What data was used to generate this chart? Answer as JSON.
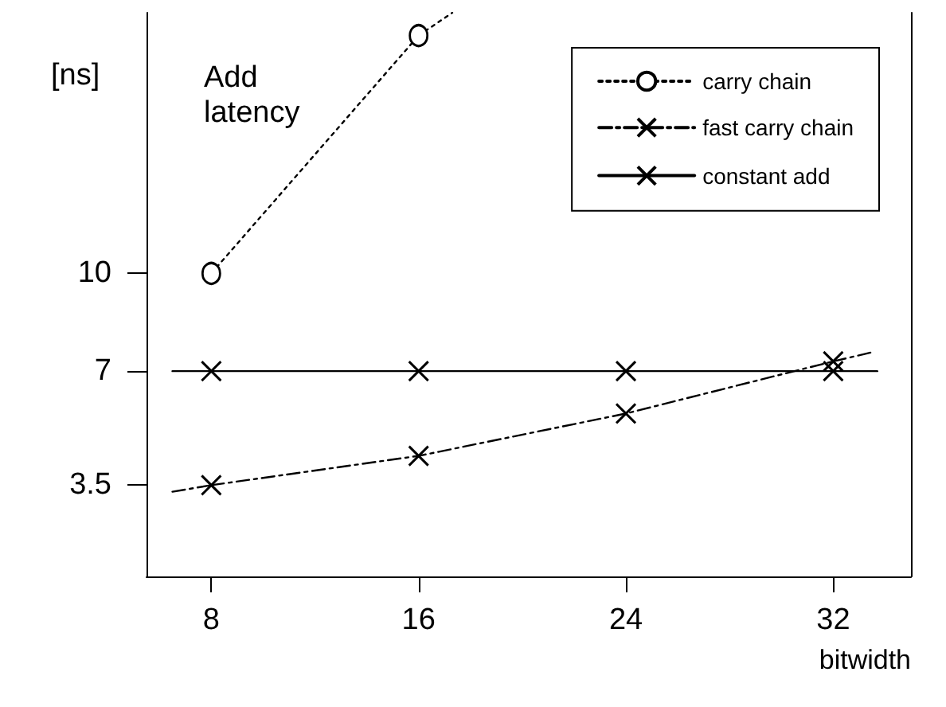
{
  "chart_data": {
    "type": "line",
    "xlabel": "bitwidth",
    "ylabel": "Add latency",
    "annotations": [
      "[ns]"
    ],
    "xlim": [
      5.5,
      35
    ],
    "xticks": [
      8,
      16,
      24,
      32
    ],
    "ylim": [
      0.7,
      18
    ],
    "yticks": [
      3.5,
      7,
      10
    ],
    "grid": false,
    "legend": "top right",
    "series": [
      {
        "name": "carry chain",
        "color": "#000000",
        "x": [
          8,
          16
        ],
        "values": [
          10,
          17.3
        ],
        "marker": "circle",
        "line_style": "dotted"
      },
      {
        "name": "fast carry chain",
        "color": "#000000",
        "x": [
          8,
          16,
          24,
          32
        ],
        "values": [
          3.5,
          4.4,
          5.7,
          7.3
        ],
        "marker": "cross",
        "line_style": "dashed"
      },
      {
        "name": "constant add",
        "color": "#000000",
        "x": [
          8,
          16,
          24,
          32
        ],
        "values": [
          7,
          7,
          7,
          7
        ],
        "marker": "cross",
        "line_style": "solid"
      },
      {
        "color": "#000000",
        "x": [
          16,
          17.3
        ],
        "values": [
          17.3,
          18
        ],
        "marker": "none",
        "line_style": "dotted"
      },
      {
        "color": "#000000",
        "x": [
          6.5,
          8
        ],
        "values": [
          3.3,
          3.5
        ],
        "marker": "none",
        "line_style": "dashed"
      },
      {
        "color": "#000000",
        "x": [
          32,
          33.6
        ],
        "values": [
          7.3,
          7.6
        ],
        "marker": "none",
        "line_style": "dashed"
      },
      {
        "color": "#000000",
        "x": [
          6.5,
          8
        ],
        "values": [
          7,
          7
        ],
        "marker": "none",
        "line_style": "solid"
      },
      {
        "color": "#000000",
        "x": [
          32,
          33.7
        ],
        "values": [
          7,
          7
        ],
        "marker": "none",
        "line_style": "solid"
      }
    ]
  }
}
